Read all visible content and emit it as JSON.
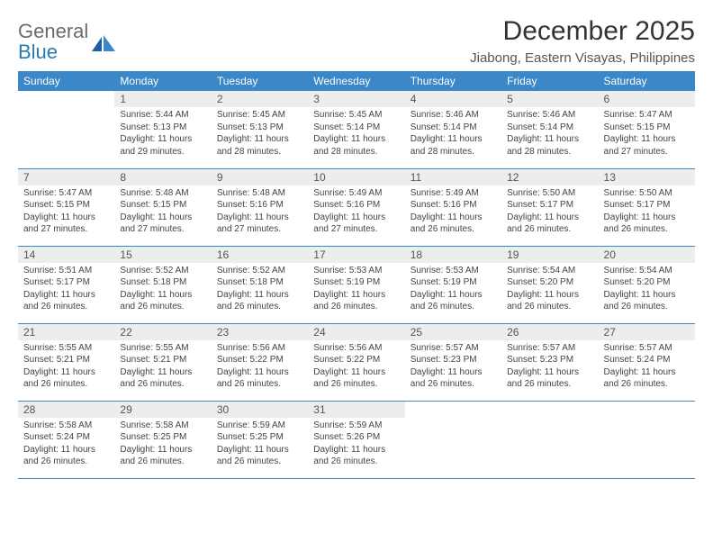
{
  "logo": {
    "gray": "General",
    "blue": "Blue"
  },
  "title": "December 2025",
  "subtitle": "Jiabong, Eastern Visayas, Philippines",
  "colors": {
    "header_bg": "#3b87c8",
    "header_fg": "#ffffff",
    "daynum_bg": "#eceded",
    "row_border": "#3b87c8",
    "logo_gray": "#6b6b6b",
    "logo_blue": "#2a7ab0"
  },
  "day_headers": [
    "Sunday",
    "Monday",
    "Tuesday",
    "Wednesday",
    "Thursday",
    "Friday",
    "Saturday"
  ],
  "weeks": [
    [
      null,
      {
        "n": "1",
        "sr": "Sunrise: 5:44 AM",
        "ss": "Sunset: 5:13 PM",
        "d1": "Daylight: 11 hours",
        "d2": "and 29 minutes."
      },
      {
        "n": "2",
        "sr": "Sunrise: 5:45 AM",
        "ss": "Sunset: 5:13 PM",
        "d1": "Daylight: 11 hours",
        "d2": "and 28 minutes."
      },
      {
        "n": "3",
        "sr": "Sunrise: 5:45 AM",
        "ss": "Sunset: 5:14 PM",
        "d1": "Daylight: 11 hours",
        "d2": "and 28 minutes."
      },
      {
        "n": "4",
        "sr": "Sunrise: 5:46 AM",
        "ss": "Sunset: 5:14 PM",
        "d1": "Daylight: 11 hours",
        "d2": "and 28 minutes."
      },
      {
        "n": "5",
        "sr": "Sunrise: 5:46 AM",
        "ss": "Sunset: 5:14 PM",
        "d1": "Daylight: 11 hours",
        "d2": "and 28 minutes."
      },
      {
        "n": "6",
        "sr": "Sunrise: 5:47 AM",
        "ss": "Sunset: 5:15 PM",
        "d1": "Daylight: 11 hours",
        "d2": "and 27 minutes."
      }
    ],
    [
      {
        "n": "7",
        "sr": "Sunrise: 5:47 AM",
        "ss": "Sunset: 5:15 PM",
        "d1": "Daylight: 11 hours",
        "d2": "and 27 minutes."
      },
      {
        "n": "8",
        "sr": "Sunrise: 5:48 AM",
        "ss": "Sunset: 5:15 PM",
        "d1": "Daylight: 11 hours",
        "d2": "and 27 minutes."
      },
      {
        "n": "9",
        "sr": "Sunrise: 5:48 AM",
        "ss": "Sunset: 5:16 PM",
        "d1": "Daylight: 11 hours",
        "d2": "and 27 minutes."
      },
      {
        "n": "10",
        "sr": "Sunrise: 5:49 AM",
        "ss": "Sunset: 5:16 PM",
        "d1": "Daylight: 11 hours",
        "d2": "and 27 minutes."
      },
      {
        "n": "11",
        "sr": "Sunrise: 5:49 AM",
        "ss": "Sunset: 5:16 PM",
        "d1": "Daylight: 11 hours",
        "d2": "and 26 minutes."
      },
      {
        "n": "12",
        "sr": "Sunrise: 5:50 AM",
        "ss": "Sunset: 5:17 PM",
        "d1": "Daylight: 11 hours",
        "d2": "and 26 minutes."
      },
      {
        "n": "13",
        "sr": "Sunrise: 5:50 AM",
        "ss": "Sunset: 5:17 PM",
        "d1": "Daylight: 11 hours",
        "d2": "and 26 minutes."
      }
    ],
    [
      {
        "n": "14",
        "sr": "Sunrise: 5:51 AM",
        "ss": "Sunset: 5:17 PM",
        "d1": "Daylight: 11 hours",
        "d2": "and 26 minutes."
      },
      {
        "n": "15",
        "sr": "Sunrise: 5:52 AM",
        "ss": "Sunset: 5:18 PM",
        "d1": "Daylight: 11 hours",
        "d2": "and 26 minutes."
      },
      {
        "n": "16",
        "sr": "Sunrise: 5:52 AM",
        "ss": "Sunset: 5:18 PM",
        "d1": "Daylight: 11 hours",
        "d2": "and 26 minutes."
      },
      {
        "n": "17",
        "sr": "Sunrise: 5:53 AM",
        "ss": "Sunset: 5:19 PM",
        "d1": "Daylight: 11 hours",
        "d2": "and 26 minutes."
      },
      {
        "n": "18",
        "sr": "Sunrise: 5:53 AM",
        "ss": "Sunset: 5:19 PM",
        "d1": "Daylight: 11 hours",
        "d2": "and 26 minutes."
      },
      {
        "n": "19",
        "sr": "Sunrise: 5:54 AM",
        "ss": "Sunset: 5:20 PM",
        "d1": "Daylight: 11 hours",
        "d2": "and 26 minutes."
      },
      {
        "n": "20",
        "sr": "Sunrise: 5:54 AM",
        "ss": "Sunset: 5:20 PM",
        "d1": "Daylight: 11 hours",
        "d2": "and 26 minutes."
      }
    ],
    [
      {
        "n": "21",
        "sr": "Sunrise: 5:55 AM",
        "ss": "Sunset: 5:21 PM",
        "d1": "Daylight: 11 hours",
        "d2": "and 26 minutes."
      },
      {
        "n": "22",
        "sr": "Sunrise: 5:55 AM",
        "ss": "Sunset: 5:21 PM",
        "d1": "Daylight: 11 hours",
        "d2": "and 26 minutes."
      },
      {
        "n": "23",
        "sr": "Sunrise: 5:56 AM",
        "ss": "Sunset: 5:22 PM",
        "d1": "Daylight: 11 hours",
        "d2": "and 26 minutes."
      },
      {
        "n": "24",
        "sr": "Sunrise: 5:56 AM",
        "ss": "Sunset: 5:22 PM",
        "d1": "Daylight: 11 hours",
        "d2": "and 26 minutes."
      },
      {
        "n": "25",
        "sr": "Sunrise: 5:57 AM",
        "ss": "Sunset: 5:23 PM",
        "d1": "Daylight: 11 hours",
        "d2": "and 26 minutes."
      },
      {
        "n": "26",
        "sr": "Sunrise: 5:57 AM",
        "ss": "Sunset: 5:23 PM",
        "d1": "Daylight: 11 hours",
        "d2": "and 26 minutes."
      },
      {
        "n": "27",
        "sr": "Sunrise: 5:57 AM",
        "ss": "Sunset: 5:24 PM",
        "d1": "Daylight: 11 hours",
        "d2": "and 26 minutes."
      }
    ],
    [
      {
        "n": "28",
        "sr": "Sunrise: 5:58 AM",
        "ss": "Sunset: 5:24 PM",
        "d1": "Daylight: 11 hours",
        "d2": "and 26 minutes."
      },
      {
        "n": "29",
        "sr": "Sunrise: 5:58 AM",
        "ss": "Sunset: 5:25 PM",
        "d1": "Daylight: 11 hours",
        "d2": "and 26 minutes."
      },
      {
        "n": "30",
        "sr": "Sunrise: 5:59 AM",
        "ss": "Sunset: 5:25 PM",
        "d1": "Daylight: 11 hours",
        "d2": "and 26 minutes."
      },
      {
        "n": "31",
        "sr": "Sunrise: 5:59 AM",
        "ss": "Sunset: 5:26 PM",
        "d1": "Daylight: 11 hours",
        "d2": "and 26 minutes."
      },
      null,
      null,
      null
    ]
  ]
}
